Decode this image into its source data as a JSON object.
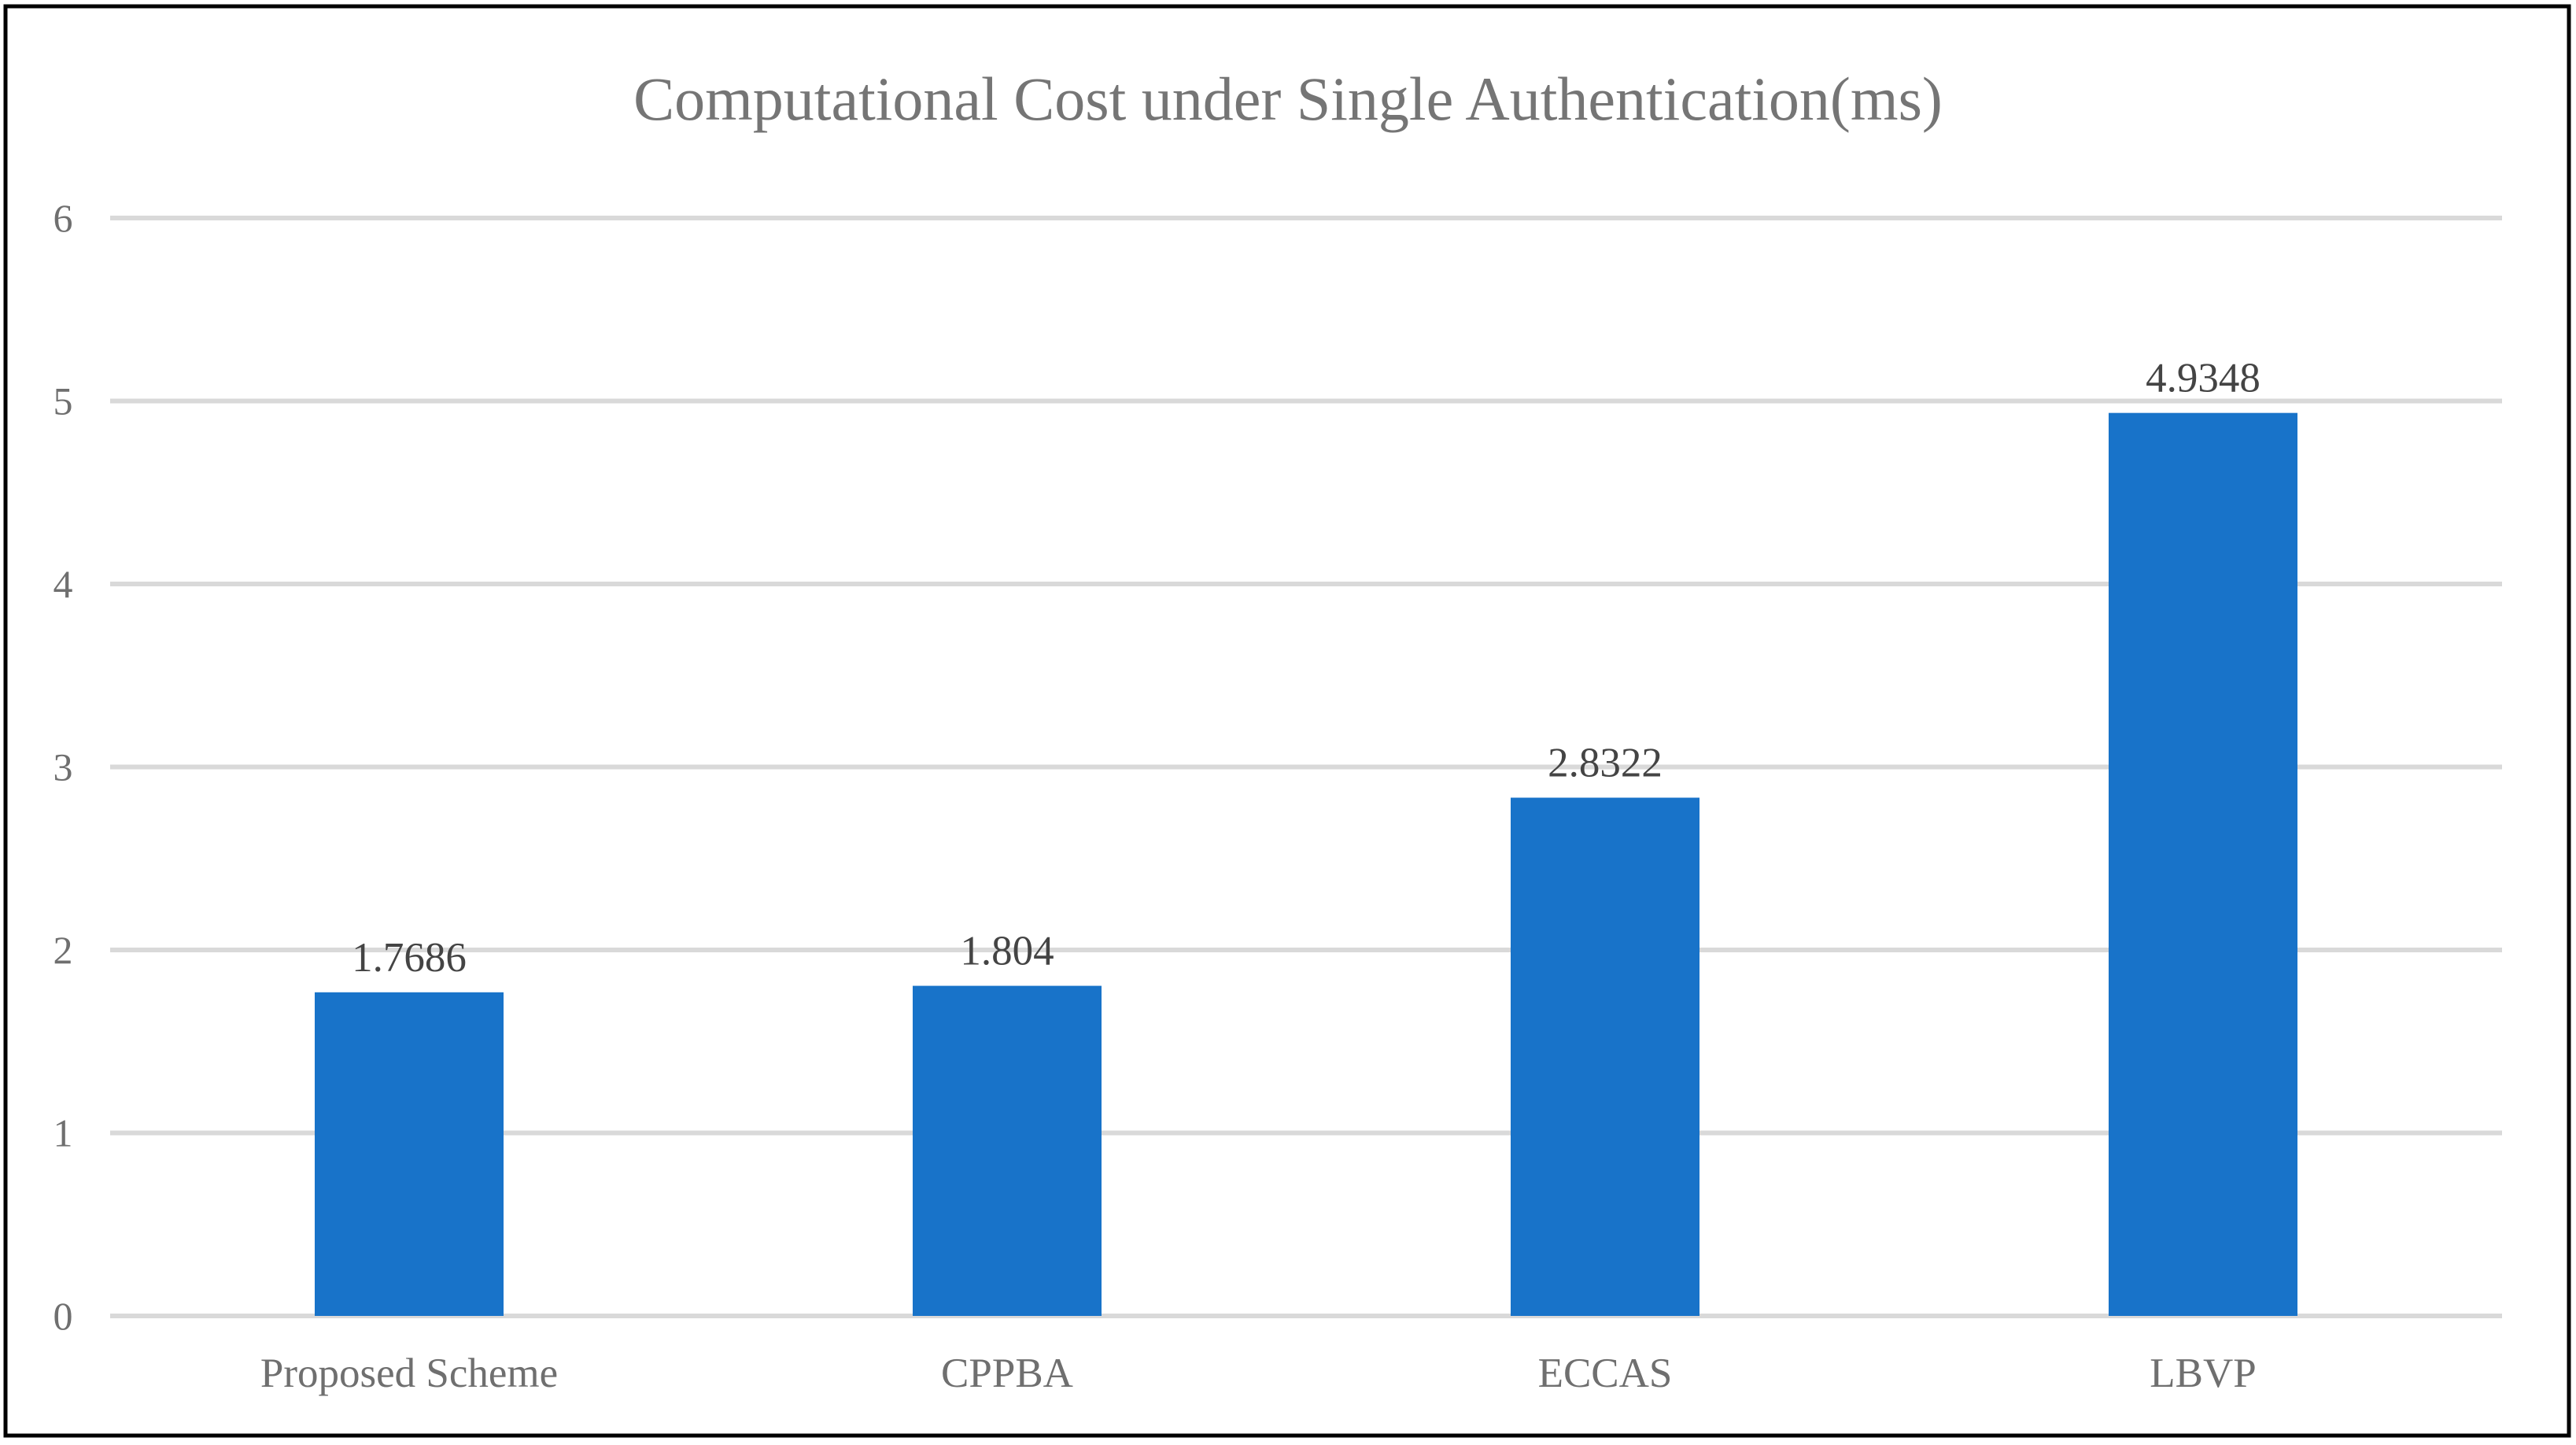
{
  "chart_data": {
    "type": "bar",
    "title": "Computational Cost under Single Authentication(ms)",
    "xlabel": "",
    "ylabel": "",
    "categories": [
      "Proposed Scheme",
      "CPPBA",
      "ECCAS",
      "LBVP"
    ],
    "values": [
      1.7686,
      1.804,
      2.8322,
      4.9348
    ],
    "data_labels": [
      "1.7686",
      "1.804",
      "2.8322",
      "4.9348"
    ],
    "ylim": [
      0,
      6
    ],
    "yticks": [
      "0",
      "1",
      "2",
      "3",
      "4",
      "5",
      "6"
    ],
    "grid": true,
    "legend": "none",
    "bar_color": "#1873C9"
  }
}
